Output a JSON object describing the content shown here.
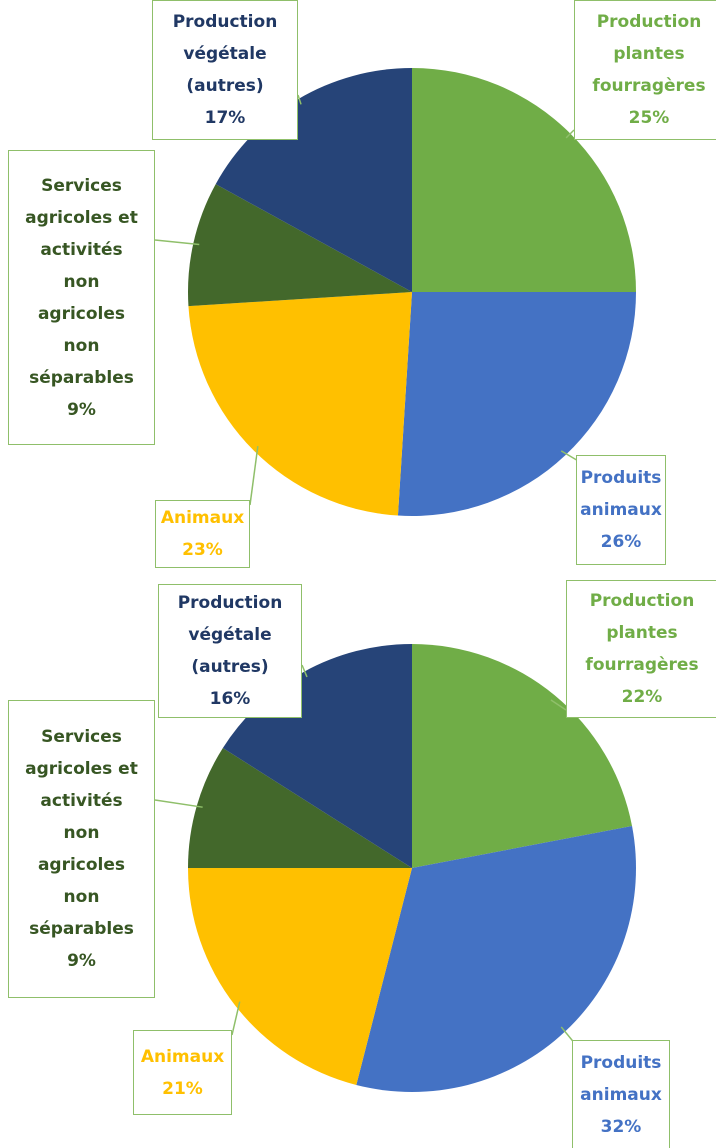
{
  "chart_data": [
    {
      "type": "pie",
      "categories": [
        "Production plantes fourragères",
        "Produits animaux",
        "Animaux",
        "Services agricoles et activités non agricoles non séparables",
        "Production végétale (autres)"
      ],
      "values": [
        25,
        26,
        23,
        9,
        17
      ],
      "value_labels": [
        "25%",
        "26%",
        "23%",
        "9%",
        "17%"
      ],
      "colors": [
        "#70ad47",
        "#4472c4",
        "#ffc000",
        "#43682b",
        "#264478"
      ]
    },
    {
      "type": "pie",
      "categories": [
        "Production plantes fourragères",
        "Produits animaux",
        "Animaux",
        "Services agricoles et activités non agricoles non séparables",
        "Production végétale (autres)"
      ],
      "values": [
        22,
        32,
        21,
        9,
        16
      ],
      "value_labels": [
        "22%",
        "32%",
        "21%",
        "9%",
        "16%"
      ],
      "colors": [
        "#70ad47",
        "#4472c4",
        "#ffc000",
        "#43682b",
        "#264478"
      ]
    }
  ]
}
